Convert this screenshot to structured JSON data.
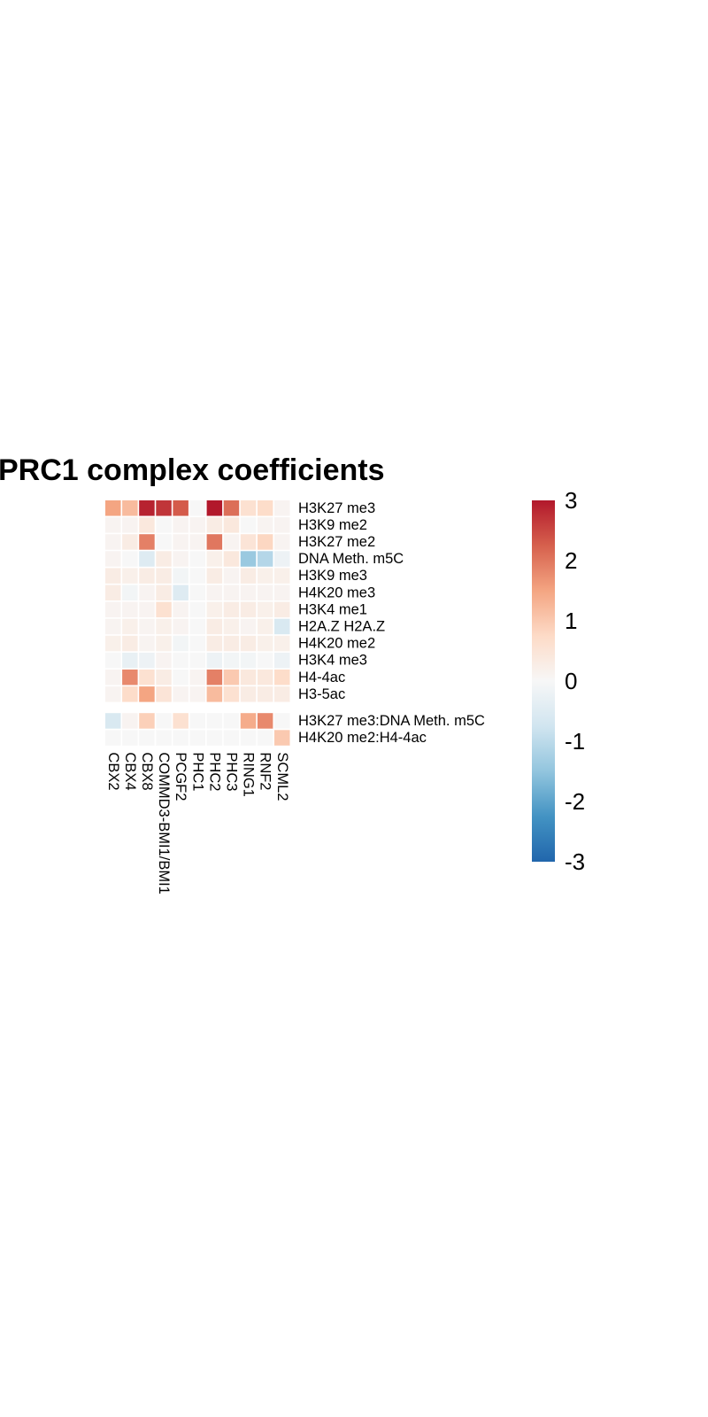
{
  "chart_data": {
    "type": "heatmap",
    "title": "PRC1 complex coefficients",
    "columns": [
      "CBX2",
      "CBX4",
      "CBX8",
      "COMMD3-BMI1/BMI1",
      "PCGF2",
      "PHC1",
      "PHC2",
      "PHC3",
      "RING1",
      "RNF2",
      "SCML2"
    ],
    "row_groups": [
      {
        "rows": [
          "H3K27 me3",
          "H3K9 me2",
          "H3K27 me2",
          "DNA Meth. m5C",
          "H3K9 me3",
          "H4K20 me3",
          "H3K4 me1",
          "H2A.Z H2A.Z",
          "H4K20 me2",
          "H3K4 me3",
          "H4-4ac",
          "H3-5ac"
        ],
        "values": [
          [
            1.5,
            1.2,
            2.9,
            2.7,
            2.3,
            0.0,
            3.2,
            2.1,
            0.6,
            0.7,
            0.1
          ],
          [
            0.1,
            0.1,
            0.4,
            0.0,
            0.1,
            0.1,
            0.3,
            0.4,
            0.0,
            0.1,
            0.1
          ],
          [
            0.1,
            0.3,
            1.9,
            0.0,
            0.1,
            0.1,
            2.0,
            0.1,
            0.5,
            0.8,
            0.1
          ],
          [
            0.1,
            0.0,
            -0.5,
            0.3,
            0.1,
            0.0,
            0.2,
            0.4,
            -1.4,
            -1.1,
            -0.2
          ],
          [
            0.3,
            0.2,
            0.3,
            0.3,
            -0.1,
            0.0,
            0.3,
            0.1,
            0.3,
            0.2,
            0.2
          ],
          [
            0.3,
            -0.1,
            0.1,
            0.3,
            -0.5,
            0.0,
            0.1,
            0.1,
            0.1,
            0.1,
            0.1
          ],
          [
            0.1,
            0.1,
            0.1,
            0.6,
            0.1,
            0.0,
            0.2,
            0.3,
            0.3,
            0.2,
            0.3
          ],
          [
            0.1,
            0.2,
            0.1,
            0.2,
            0.1,
            0.0,
            0.3,
            0.2,
            0.1,
            0.2,
            -0.6
          ],
          [
            0.2,
            0.3,
            0.1,
            0.2,
            -0.1,
            0.0,
            0.3,
            0.3,
            0.3,
            0.2,
            0.2
          ],
          [
            0.0,
            -0.3,
            -0.2,
            0.1,
            0.0,
            0.0,
            -0.2,
            -0.1,
            -0.1,
            0.0,
            -0.2
          ],
          [
            0.1,
            1.8,
            0.6,
            0.3,
            0.0,
            0.1,
            1.9,
            1.0,
            0.4,
            0.4,
            0.7
          ],
          [
            0.1,
            0.7,
            1.5,
            0.5,
            0.1,
            0.1,
            1.2,
            0.6,
            0.3,
            0.3,
            0.3
          ]
        ]
      },
      {
        "rows": [
          "H3K27 me3:DNA Meth. m5C",
          "H4K20 me2:H4-4ac"
        ],
        "values": [
          [
            -0.6,
            0.1,
            0.9,
            0.0,
            0.6,
            0.0,
            0.0,
            0.0,
            1.4,
            1.8,
            0.0
          ],
          [
            0.0,
            0.0,
            0.0,
            0.0,
            0.0,
            0.0,
            0.0,
            0.0,
            0.0,
            0.0,
            1.0
          ]
        ]
      }
    ],
    "colorbar": {
      "min": -3,
      "max": 3,
      "ticks": [
        "3",
        "2",
        "1",
        "0",
        "-1",
        "-2",
        "-3"
      ],
      "colors": [
        "#2166ac",
        "#4393c3",
        "#92c5de",
        "#d1e5f0",
        "#f7f7f7",
        "#fddbc7",
        "#f4a582",
        "#d6604d",
        "#b2182b"
      ]
    }
  }
}
